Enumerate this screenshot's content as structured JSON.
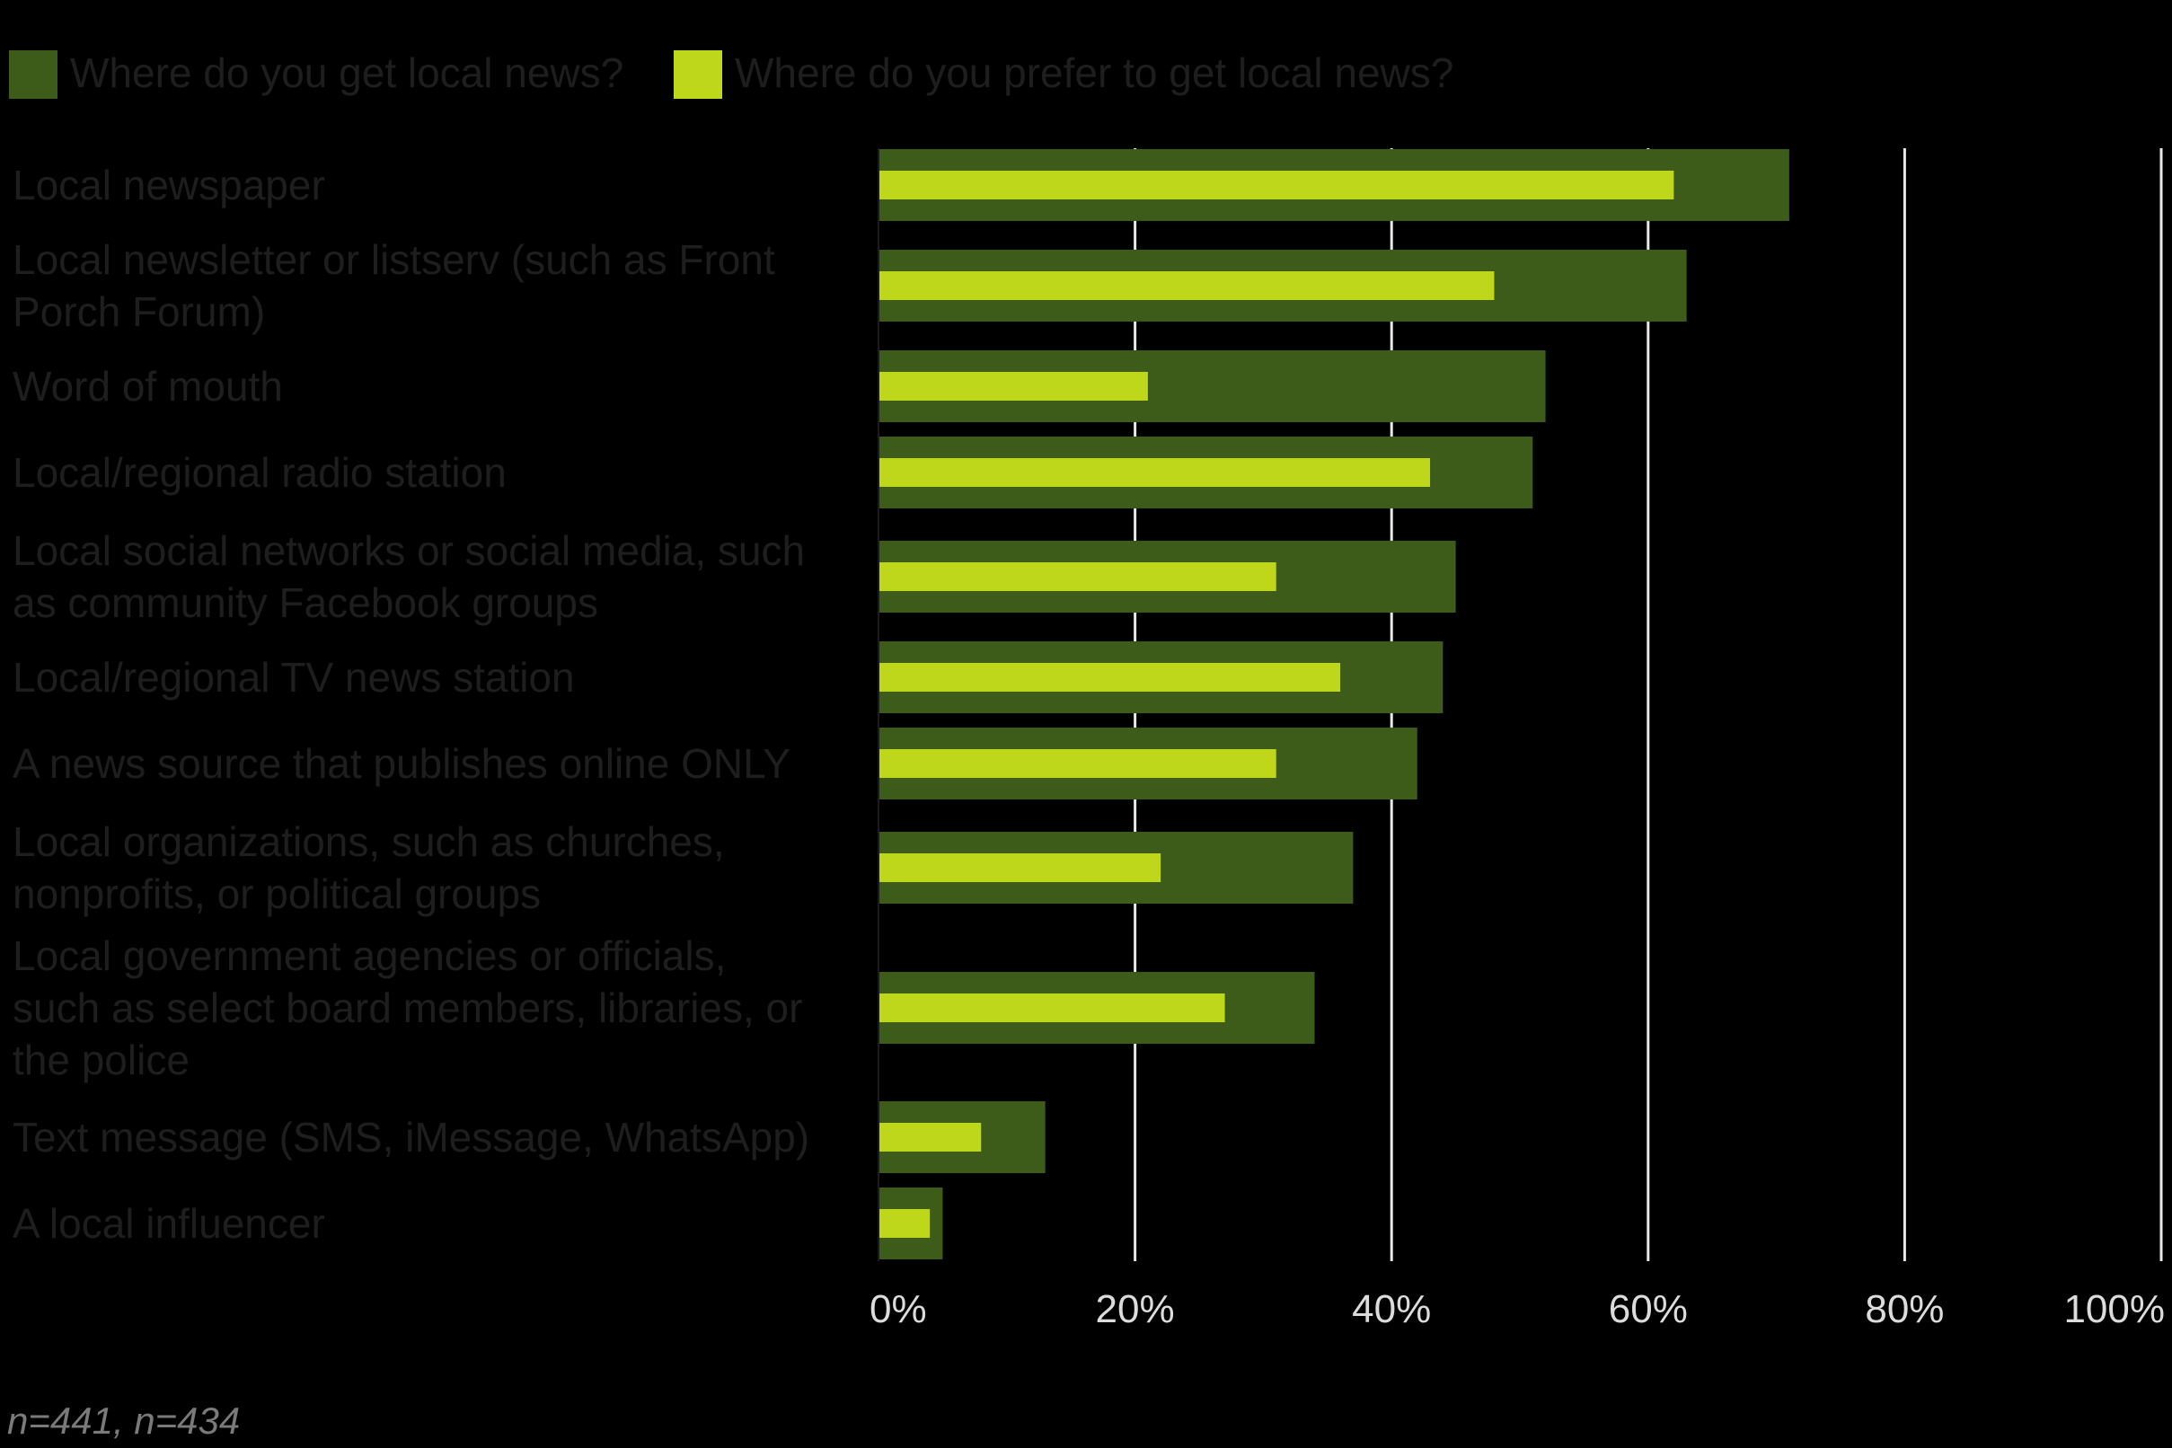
{
  "chart_data": {
    "type": "bar",
    "orientation": "horizontal",
    "categories": [
      "Local newspaper",
      "Local newsletter or listserv (such as Front Porch Forum)",
      "Word of mouth",
      "Local/regional radio station",
      "Local social networks or social media, such as community Facebook groups",
      "Local/regional TV news station",
      "A news source that publishes online ONLY",
      "Local organizations, such as churches, nonprofits, or political groups",
      "Local government agencies or officials, such as select board members, libraries, or the police",
      "Text message (SMS, iMessage, WhatsApp)",
      "A local influencer"
    ],
    "category_lines": [
      [
        "Local newspaper"
      ],
      [
        "Local newsletter or listserv (such as Front",
        "Porch Forum)"
      ],
      [
        "Word of mouth"
      ],
      [
        "Local/regional radio station"
      ],
      [
        "Local social networks or social media, such",
        "as community Facebook groups"
      ],
      [
        "Local/regional TV news station"
      ],
      [
        "A news source that publishes online ONLY"
      ],
      [
        "Local organizations, such as churches,",
        "nonprofits, or political groups"
      ],
      [
        "Local government agencies or officials,",
        "such as select board members, libraries, or",
        "the police"
      ],
      [
        "Text message (SMS, iMessage, WhatsApp)"
      ],
      [
        "A local influencer"
      ]
    ],
    "series": [
      {
        "name": "Where do you get local news?",
        "color": "#3d5c1a",
        "values": [
          71,
          63,
          52,
          51,
          45,
          44,
          42,
          37,
          34,
          13,
          5
        ]
      },
      {
        "name": "Where do you prefer to get local news?",
        "color": "#bfd71b",
        "values": [
          62,
          48,
          21,
          43,
          31,
          36,
          31,
          22,
          27,
          8,
          4
        ]
      }
    ],
    "xlim": [
      0,
      100
    ],
    "x_ticks": [
      "0%",
      "20%",
      "40%",
      "60%",
      "80%",
      "100%"
    ],
    "grid": true,
    "legend_position": "top-left",
    "title": "",
    "xlabel": "",
    "ylabel": "",
    "note": "n=441, n=434"
  }
}
